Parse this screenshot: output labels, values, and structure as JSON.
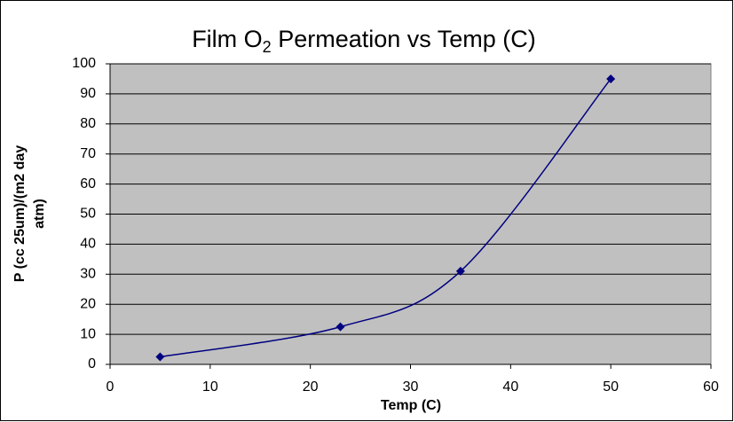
{
  "chart_data": {
    "type": "scatter-line",
    "title": "Film O2 Permeation vs Temp (C)",
    "xlabel": "Temp (C)",
    "ylabel": "P (cc 25um)/(m2 day atm)",
    "x": [
      5,
      23,
      35,
      50
    ],
    "series": [
      {
        "color": "#000080",
        "values": [
          2.5,
          12.5,
          31,
          95
        ]
      }
    ],
    "xlim": [
      0,
      60
    ],
    "xticks": [
      0,
      10,
      20,
      30,
      40,
      50,
      60
    ],
    "ylim": [
      0,
      100
    ],
    "yticks": [
      0,
      10,
      20,
      30,
      40,
      50,
      60,
      70,
      80,
      90,
      100
    ],
    "grid": true,
    "smooth": true
  }
}
